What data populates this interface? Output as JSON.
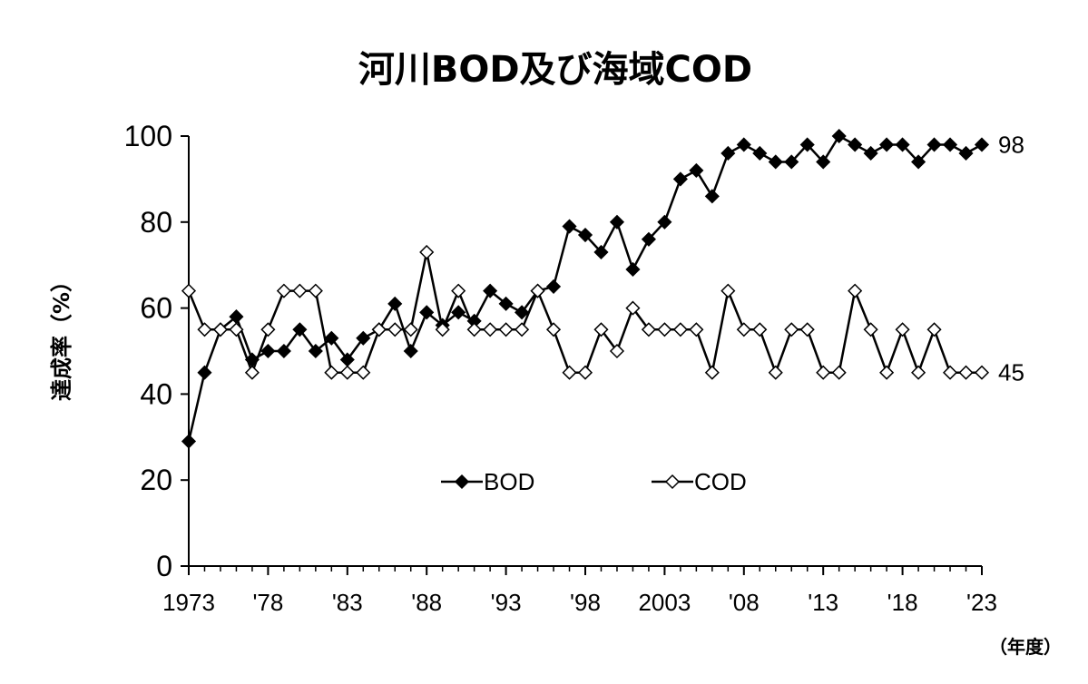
{
  "chart_data": {
    "type": "line",
    "title": "河川BOD及び海域COD",
    "ylabel": "達成率（%）",
    "xlabel": "",
    "x_unit_label": "（年度）",
    "ylim": [
      0,
      100
    ],
    "yticks": [
      0,
      20,
      40,
      60,
      80,
      100
    ],
    "x": [
      1973,
      1974,
      1975,
      1976,
      1977,
      1978,
      1979,
      1980,
      1981,
      1982,
      1983,
      1984,
      1985,
      1986,
      1987,
      1988,
      1989,
      1990,
      1991,
      1992,
      1993,
      1994,
      1995,
      1996,
      1997,
      1998,
      1999,
      2000,
      2001,
      2002,
      2003,
      2004,
      2005,
      2006,
      2007,
      2008,
      2009,
      2010,
      2011,
      2012,
      2013,
      2014,
      2015,
      2016,
      2017,
      2018,
      2019,
      2020,
      2021,
      2022,
      2023
    ],
    "xticks": [
      {
        "x": 1973,
        "label": "1973"
      },
      {
        "x": 1978,
        "label": "'78"
      },
      {
        "x": 1983,
        "label": "'83"
      },
      {
        "x": 1988,
        "label": "'88"
      },
      {
        "x": 1993,
        "label": "'93"
      },
      {
        "x": 1998,
        "label": "'98"
      },
      {
        "x": 2003,
        "label": "2003"
      },
      {
        "x": 2008,
        "label": "'08"
      },
      {
        "x": 2013,
        "label": "'13"
      },
      {
        "x": 2018,
        "label": "'18"
      },
      {
        "x": 2023,
        "label": "'23"
      }
    ],
    "grid": false,
    "legend": "center",
    "series": [
      {
        "name": "BOD",
        "marker": "filled-diamond",
        "color": "#000000",
        "end_label": "98",
        "values": [
          29,
          45,
          55,
          58,
          48,
          50,
          50,
          55,
          50,
          53,
          48,
          53,
          55,
          61,
          50,
          59,
          56,
          59,
          57,
          64,
          61,
          59,
          64,
          65,
          79,
          77,
          73,
          80,
          69,
          76,
          80,
          90,
          92,
          86,
          96,
          98,
          96,
          94,
          94,
          98,
          94,
          100,
          98,
          96,
          98,
          98,
          94,
          98,
          98,
          96,
          98
        ]
      },
      {
        "name": "COD",
        "marker": "open-diamond",
        "color": "#000000",
        "end_label": "45",
        "values": [
          64,
          55,
          55,
          55,
          45,
          55,
          64,
          64,
          64,
          45,
          45,
          45,
          55,
          55,
          55,
          73,
          55,
          64,
          55,
          55,
          55,
          55,
          64,
          55,
          45,
          45,
          55,
          50,
          60,
          55,
          55,
          55,
          55,
          45,
          64,
          55,
          55,
          45,
          55,
          55,
          45,
          45,
          64,
          55,
          45,
          55,
          45,
          55,
          45,
          45,
          45
        ]
      }
    ]
  }
}
